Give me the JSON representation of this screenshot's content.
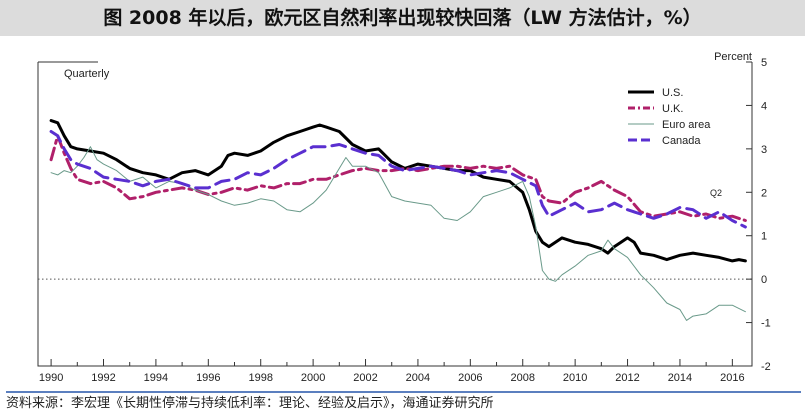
{
  "title": "图 2008 年以后，欧元区自然利率出现较快回落（LW 方法估计，%）",
  "source": "资料来源：李宏理《长期性停滞与持续低利率：理论、经验及启示》，海通证券研究所",
  "chart_data": {
    "type": "line",
    "frequency_label": "Quarterly",
    "ylabel": "Percent",
    "ylim": [
      -2,
      5
    ],
    "yticks": [
      -2,
      -1,
      0,
      1,
      2,
      3,
      4,
      5
    ],
    "xlim": [
      1989.5,
      2016.75
    ],
    "xticks": [
      1990,
      1992,
      1994,
      1996,
      1998,
      2000,
      2002,
      2004,
      2006,
      2008,
      2010,
      2012,
      2014,
      2016
    ],
    "zero_line": "dotted",
    "annotation": "Q2",
    "legend_position": "top-right",
    "series": [
      {
        "name": "U.S.",
        "color": "#000000",
        "dash": "solid",
        "width": 3,
        "points": [
          [
            1990.0,
            3.65
          ],
          [
            1990.25,
            3.6
          ],
          [
            1990.5,
            3.3
          ],
          [
            1990.75,
            3.05
          ],
          [
            1991.0,
            3.0
          ],
          [
            1991.5,
            2.95
          ],
          [
            1992.0,
            2.9
          ],
          [
            1992.5,
            2.75
          ],
          [
            1993.0,
            2.55
          ],
          [
            1993.5,
            2.45
          ],
          [
            1994.0,
            2.4
          ],
          [
            1994.5,
            2.3
          ],
          [
            1995.0,
            2.45
          ],
          [
            1995.5,
            2.5
          ],
          [
            1996.0,
            2.4
          ],
          [
            1996.5,
            2.6
          ],
          [
            1996.75,
            2.85
          ],
          [
            1997.0,
            2.9
          ],
          [
            1997.5,
            2.85
          ],
          [
            1998.0,
            2.95
          ],
          [
            1998.5,
            3.15
          ],
          [
            1999.0,
            3.3
          ],
          [
            1999.5,
            3.4
          ],
          [
            2000.0,
            3.5
          ],
          [
            2000.25,
            3.55
          ],
          [
            2000.5,
            3.5
          ],
          [
            2001.0,
            3.4
          ],
          [
            2001.5,
            3.1
          ],
          [
            2002.0,
            2.95
          ],
          [
            2002.5,
            3.0
          ],
          [
            2003.0,
            2.7
          ],
          [
            2003.5,
            2.55
          ],
          [
            2004.0,
            2.65
          ],
          [
            2004.5,
            2.6
          ],
          [
            2005.0,
            2.55
          ],
          [
            2005.5,
            2.5
          ],
          [
            2006.0,
            2.5
          ],
          [
            2006.5,
            2.35
          ],
          [
            2007.0,
            2.3
          ],
          [
            2007.5,
            2.25
          ],
          [
            2008.0,
            2.0
          ],
          [
            2008.25,
            1.6
          ],
          [
            2008.5,
            1.1
          ],
          [
            2008.75,
            0.85
          ],
          [
            2009.0,
            0.75
          ],
          [
            2009.5,
            0.95
          ],
          [
            2010.0,
            0.85
          ],
          [
            2010.5,
            0.8
          ],
          [
            2011.0,
            0.7
          ],
          [
            2011.25,
            0.6
          ],
          [
            2011.5,
            0.75
          ],
          [
            2011.75,
            0.85
          ],
          [
            2012.0,
            0.95
          ],
          [
            2012.25,
            0.85
          ],
          [
            2012.5,
            0.6
          ],
          [
            2013.0,
            0.55
          ],
          [
            2013.5,
            0.45
          ],
          [
            2014.0,
            0.55
          ],
          [
            2014.5,
            0.6
          ],
          [
            2015.0,
            0.55
          ],
          [
            2015.5,
            0.5
          ],
          [
            2016.0,
            0.42
          ],
          [
            2016.25,
            0.45
          ],
          [
            2016.5,
            0.42
          ]
        ]
      },
      {
        "name": "U.K.",
        "color": "#b0206a",
        "dash": "dashdot",
        "width": 3,
        "points": [
          [
            1990.0,
            2.75
          ],
          [
            1990.25,
            3.3
          ],
          [
            1990.5,
            2.9
          ],
          [
            1990.75,
            2.55
          ],
          [
            1991.0,
            2.3
          ],
          [
            1991.5,
            2.2
          ],
          [
            1992.0,
            2.25
          ],
          [
            1992.5,
            2.1
          ],
          [
            1993.0,
            1.85
          ],
          [
            1993.5,
            1.9
          ],
          [
            1994.0,
            2.0
          ],
          [
            1994.5,
            2.05
          ],
          [
            1995.0,
            2.1
          ],
          [
            1995.5,
            2.05
          ],
          [
            1996.0,
            1.95
          ],
          [
            1996.5,
            2.0
          ],
          [
            1997.0,
            2.1
          ],
          [
            1997.5,
            2.05
          ],
          [
            1998.0,
            2.15
          ],
          [
            1998.5,
            2.1
          ],
          [
            1999.0,
            2.2
          ],
          [
            1999.5,
            2.2
          ],
          [
            2000.0,
            2.3
          ],
          [
            2000.5,
            2.3
          ],
          [
            2001.0,
            2.4
          ],
          [
            2001.5,
            2.5
          ],
          [
            2002.0,
            2.55
          ],
          [
            2002.5,
            2.5
          ],
          [
            2003.0,
            2.5
          ],
          [
            2003.5,
            2.55
          ],
          [
            2004.0,
            2.5
          ],
          [
            2004.5,
            2.55
          ],
          [
            2005.0,
            2.6
          ],
          [
            2005.5,
            2.6
          ],
          [
            2006.0,
            2.55
          ],
          [
            2006.5,
            2.6
          ],
          [
            2007.0,
            2.55
          ],
          [
            2007.5,
            2.6
          ],
          [
            2008.0,
            2.4
          ],
          [
            2008.5,
            2.3
          ],
          [
            2008.75,
            1.9
          ],
          [
            2009.0,
            1.8
          ],
          [
            2009.5,
            1.75
          ],
          [
            2010.0,
            2.0
          ],
          [
            2010.5,
            2.1
          ],
          [
            2011.0,
            2.25
          ],
          [
            2011.25,
            2.15
          ],
          [
            2011.5,
            2.05
          ],
          [
            2012.0,
            1.9
          ],
          [
            2012.5,
            1.55
          ],
          [
            2013.0,
            1.45
          ],
          [
            2013.5,
            1.5
          ],
          [
            2014.0,
            1.55
          ],
          [
            2014.5,
            1.45
          ],
          [
            2015.0,
            1.5
          ],
          [
            2015.5,
            1.4
          ],
          [
            2016.0,
            1.45
          ],
          [
            2016.5,
            1.35
          ]
        ]
      },
      {
        "name": "Euro area",
        "color": "#6a9a8a",
        "dash": "solid",
        "width": 1,
        "points": [
          [
            1990.0,
            2.45
          ],
          [
            1990.25,
            2.4
          ],
          [
            1990.5,
            2.5
          ],
          [
            1990.75,
            2.45
          ],
          [
            1991.0,
            2.6
          ],
          [
            1991.25,
            2.8
          ],
          [
            1991.5,
            3.05
          ],
          [
            1991.75,
            2.75
          ],
          [
            1992.0,
            2.65
          ],
          [
            1992.5,
            2.5
          ],
          [
            1993.0,
            2.25
          ],
          [
            1993.5,
            2.35
          ],
          [
            1994.0,
            2.1
          ],
          [
            1994.5,
            2.25
          ],
          [
            1995.0,
            2.2
          ],
          [
            1995.5,
            2.05
          ],
          [
            1996.0,
            1.95
          ],
          [
            1996.5,
            1.8
          ],
          [
            1997.0,
            1.7
          ],
          [
            1997.5,
            1.75
          ],
          [
            1998.0,
            1.85
          ],
          [
            1998.5,
            1.8
          ],
          [
            1999.0,
            1.6
          ],
          [
            1999.5,
            1.55
          ],
          [
            2000.0,
            1.75
          ],
          [
            2000.5,
            2.05
          ],
          [
            2001.0,
            2.55
          ],
          [
            2001.25,
            2.8
          ],
          [
            2001.5,
            2.6
          ],
          [
            2002.0,
            2.6
          ],
          [
            2002.5,
            2.45
          ],
          [
            2003.0,
            1.9
          ],
          [
            2003.5,
            1.8
          ],
          [
            2004.0,
            1.75
          ],
          [
            2004.5,
            1.7
          ],
          [
            2005.0,
            1.4
          ],
          [
            2005.5,
            1.35
          ],
          [
            2006.0,
            1.55
          ],
          [
            2006.5,
            1.9
          ],
          [
            2007.0,
            2.0
          ],
          [
            2007.5,
            2.1
          ],
          [
            2008.0,
            2.25
          ],
          [
            2008.25,
            1.9
          ],
          [
            2008.5,
            1.2
          ],
          [
            2008.75,
            0.2
          ],
          [
            2009.0,
            0.0
          ],
          [
            2009.25,
            -0.05
          ],
          [
            2009.5,
            0.1
          ],
          [
            2010.0,
            0.3
          ],
          [
            2010.5,
            0.55
          ],
          [
            2011.0,
            0.65
          ],
          [
            2011.25,
            0.9
          ],
          [
            2011.5,
            0.7
          ],
          [
            2012.0,
            0.5
          ],
          [
            2012.5,
            0.1
          ],
          [
            2013.0,
            -0.2
          ],
          [
            2013.5,
            -0.55
          ],
          [
            2014.0,
            -0.7
          ],
          [
            2014.25,
            -0.95
          ],
          [
            2014.5,
            -0.85
          ],
          [
            2015.0,
            -0.8
          ],
          [
            2015.5,
            -0.6
          ],
          [
            2016.0,
            -0.6
          ],
          [
            2016.5,
            -0.75
          ]
        ]
      },
      {
        "name": "Canada",
        "color": "#5a2fd0",
        "dash": "dashed",
        "width": 3,
        "points": [
          [
            1990.0,
            3.4
          ],
          [
            1990.25,
            3.3
          ],
          [
            1990.5,
            3.0
          ],
          [
            1990.75,
            2.75
          ],
          [
            1991.0,
            2.65
          ],
          [
            1991.5,
            2.55
          ],
          [
            1992.0,
            2.35
          ],
          [
            1992.5,
            2.3
          ],
          [
            1993.0,
            2.25
          ],
          [
            1993.5,
            2.15
          ],
          [
            1994.0,
            2.25
          ],
          [
            1994.5,
            2.3
          ],
          [
            1995.0,
            2.2
          ],
          [
            1995.5,
            2.1
          ],
          [
            1996.0,
            2.1
          ],
          [
            1996.5,
            2.25
          ],
          [
            1997.0,
            2.3
          ],
          [
            1997.5,
            2.45
          ],
          [
            1998.0,
            2.4
          ],
          [
            1998.5,
            2.55
          ],
          [
            1999.0,
            2.75
          ],
          [
            1999.5,
            2.9
          ],
          [
            2000.0,
            3.05
          ],
          [
            2000.5,
            3.05
          ],
          [
            2001.0,
            3.1
          ],
          [
            2001.5,
            3.0
          ],
          [
            2002.0,
            2.9
          ],
          [
            2002.5,
            2.85
          ],
          [
            2003.0,
            2.6
          ],
          [
            2003.5,
            2.5
          ],
          [
            2004.0,
            2.55
          ],
          [
            2004.5,
            2.6
          ],
          [
            2005.0,
            2.55
          ],
          [
            2005.5,
            2.5
          ],
          [
            2006.0,
            2.4
          ],
          [
            2006.5,
            2.45
          ],
          [
            2007.0,
            2.5
          ],
          [
            2007.5,
            2.45
          ],
          [
            2008.0,
            2.3
          ],
          [
            2008.5,
            2.15
          ],
          [
            2008.75,
            1.7
          ],
          [
            2009.0,
            1.45
          ],
          [
            2009.5,
            1.6
          ],
          [
            2010.0,
            1.75
          ],
          [
            2010.5,
            1.55
          ],
          [
            2011.0,
            1.6
          ],
          [
            2011.5,
            1.75
          ],
          [
            2012.0,
            1.6
          ],
          [
            2012.5,
            1.5
          ],
          [
            2013.0,
            1.4
          ],
          [
            2013.5,
            1.5
          ],
          [
            2014.0,
            1.65
          ],
          [
            2014.5,
            1.6
          ],
          [
            2015.0,
            1.4
          ],
          [
            2015.5,
            1.55
          ],
          [
            2016.0,
            1.35
          ],
          [
            2016.5,
            1.2
          ]
        ]
      }
    ]
  }
}
